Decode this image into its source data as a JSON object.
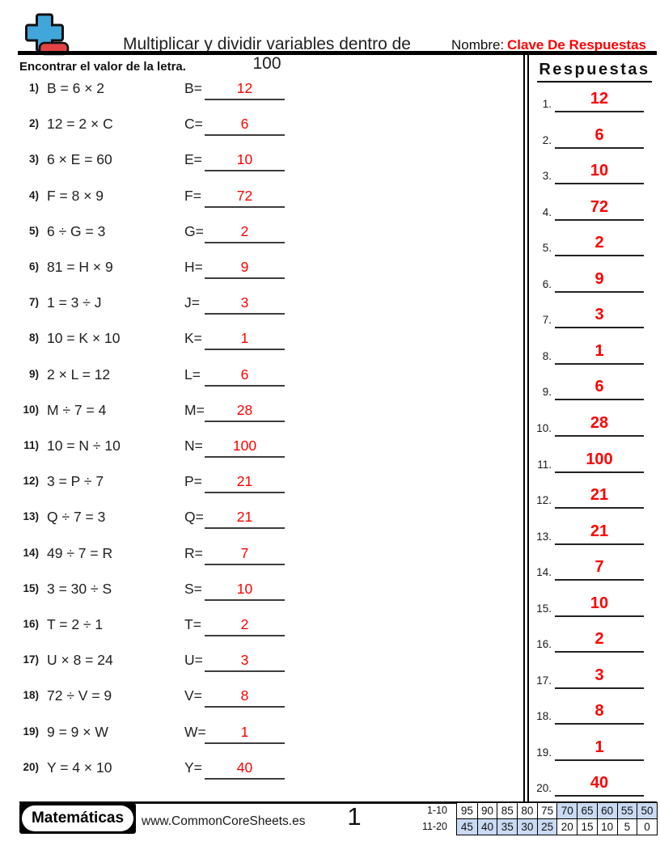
{
  "header": {
    "title": "Multiplicar y dividir variables dentro de 100",
    "name_label": "Nombre:",
    "name_value": "Clave De Respuestas"
  },
  "instruction": "Encontrar el valor de la letra.",
  "problems": [
    {
      "num": "1)",
      "equation": "B = 6 × 2",
      "answer_label": "B=",
      "answer": "12"
    },
    {
      "num": "2)",
      "equation": "12 = 2 × C",
      "answer_label": "C=",
      "answer": "6"
    },
    {
      "num": "3)",
      "equation": "6 × E = 60",
      "answer_label": "E=",
      "answer": "10"
    },
    {
      "num": "4)",
      "equation": "F = 8 × 9",
      "answer_label": "F=",
      "answer": "72"
    },
    {
      "num": "5)",
      "equation": "6 ÷ G = 3",
      "answer_label": "G=",
      "answer": "2"
    },
    {
      "num": "6)",
      "equation": "81 = H × 9",
      "answer_label": "H=",
      "answer": "9"
    },
    {
      "num": "7)",
      "equation": "1 = 3 ÷ J",
      "answer_label": "J=",
      "answer": "3"
    },
    {
      "num": "8)",
      "equation": "10 = K × 10",
      "answer_label": "K=",
      "answer": "1"
    },
    {
      "num": "9)",
      "equation": "2 × L = 12",
      "answer_label": "L=",
      "answer": "6"
    },
    {
      "num": "10)",
      "equation": "M ÷ 7 = 4",
      "answer_label": "M=",
      "answer": "28"
    },
    {
      "num": "11)",
      "equation": "10 = N ÷ 10",
      "answer_label": "N=",
      "answer": "100"
    },
    {
      "num": "12)",
      "equation": "3 = P ÷ 7",
      "answer_label": "P=",
      "answer": "21"
    },
    {
      "num": "13)",
      "equation": "Q ÷ 7 = 3",
      "answer_label": "Q=",
      "answer": "21"
    },
    {
      "num": "14)",
      "equation": "49 ÷ 7 = R",
      "answer_label": "R=",
      "answer": "7"
    },
    {
      "num": "15)",
      "equation": "3 = 30 ÷ S",
      "answer_label": "S=",
      "answer": "10"
    },
    {
      "num": "16)",
      "equation": "T = 2 ÷ 1",
      "answer_label": "T=",
      "answer": "2"
    },
    {
      "num": "17)",
      "equation": "U × 8 = 24",
      "answer_label": "U=",
      "answer": "3"
    },
    {
      "num": "18)",
      "equation": "72 ÷ V = 9",
      "answer_label": "V=",
      "answer": "8"
    },
    {
      "num": "19)",
      "equation": "9 = 9 × W",
      "answer_label": "W=",
      "answer": "1"
    },
    {
      "num": "20)",
      "equation": "Y = 4 × 10",
      "answer_label": "Y=",
      "answer": "40"
    }
  ],
  "answers_panel": {
    "title": "Respuestas",
    "items": [
      {
        "num": "1.",
        "value": "12"
      },
      {
        "num": "2.",
        "value": "6"
      },
      {
        "num": "3.",
        "value": "10"
      },
      {
        "num": "4.",
        "value": "72"
      },
      {
        "num": "5.",
        "value": "2"
      },
      {
        "num": "6.",
        "value": "9"
      },
      {
        "num": "7.",
        "value": "3"
      },
      {
        "num": "8.",
        "value": "1"
      },
      {
        "num": "9.",
        "value": "6"
      },
      {
        "num": "10.",
        "value": "28"
      },
      {
        "num": "11.",
        "value": "100"
      },
      {
        "num": "12.",
        "value": "21"
      },
      {
        "num": "13.",
        "value": "21"
      },
      {
        "num": "14.",
        "value": "7"
      },
      {
        "num": "15.",
        "value": "10"
      },
      {
        "num": "16.",
        "value": "2"
      },
      {
        "num": "17.",
        "value": "3"
      },
      {
        "num": "18.",
        "value": "8"
      },
      {
        "num": "19.",
        "value": "1"
      },
      {
        "num": "20.",
        "value": "40"
      }
    ]
  },
  "footer": {
    "brand": "Matemáticas",
    "website": "www.CommonCoreSheets.es",
    "page_number": "1",
    "score_table": {
      "row_labels": [
        "1-10",
        "11-20"
      ],
      "rows": [
        {
          "values": [
            "95",
            "90",
            "85",
            "80",
            "75",
            "70",
            "65",
            "60",
            "55",
            "50"
          ],
          "highlighted": [
            false,
            false,
            false,
            false,
            false,
            true,
            true,
            true,
            true,
            true
          ]
        },
        {
          "values": [
            "45",
            "40",
            "35",
            "30",
            "25",
            "20",
            "15",
            "10",
            "5",
            "0"
          ],
          "highlighted": [
            true,
            true,
            true,
            true,
            true,
            false,
            false,
            false,
            false,
            false
          ]
        }
      ]
    }
  },
  "icons": {
    "logo": "plus-minus-math-icon"
  },
  "colors": {
    "answer_red": "#ff0000",
    "score_highlight": "#c9daf2",
    "logo_plus_blue": "#41a6da",
    "logo_minus_red": "#e04444"
  }
}
